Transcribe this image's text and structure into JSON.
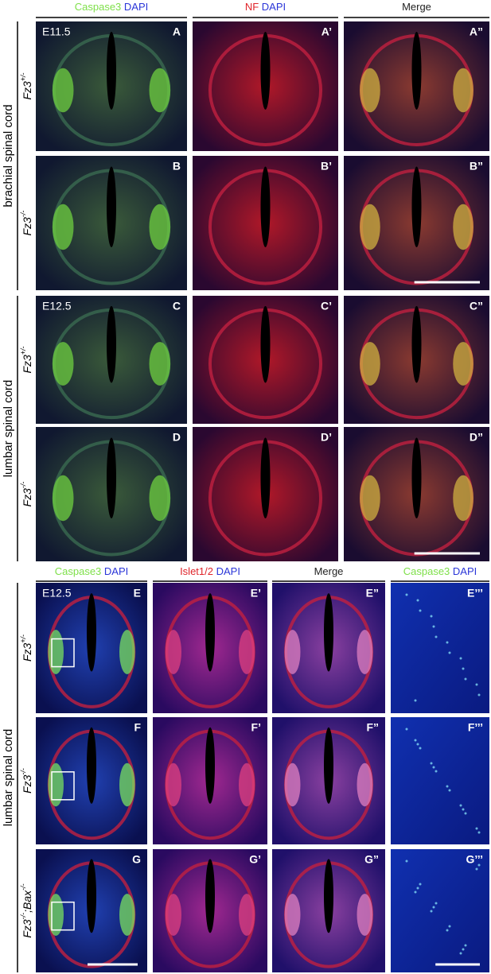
{
  "top": {
    "headers": [
      [
        {
          "text": "Caspase3",
          "color": "#7fe04a"
        },
        {
          "text": "DAPI",
          "color": "#2a35d8"
        }
      ],
      [
        {
          "text": "NF",
          "color": "#e0242a"
        },
        {
          "text": "DAPI",
          "color": "#2a35d8"
        }
      ],
      [
        {
          "text": "Merge",
          "color": "#222222"
        }
      ]
    ],
    "regions": [
      {
        "label": "brachial spinal cord",
        "rows": [
          0,
          1
        ]
      },
      {
        "label": "lumbar spinal cord",
        "rows": [
          2,
          3
        ]
      }
    ],
    "rows": [
      {
        "genotype": [
          {
            "text": "Fz3",
            "sup": "+/-"
          }
        ],
        "stage": "E11.5",
        "panels": [
          "A",
          "A’",
          "A”"
        ]
      },
      {
        "genotype": [
          {
            "text": "Fz3",
            "sup": "-/-"
          }
        ],
        "panels": [
          "B",
          "B’",
          "B”"
        ]
      },
      {
        "genotype": [
          {
            "text": "Fz3",
            "sup": "+/-"
          }
        ],
        "stage": "E12.5",
        "panels": [
          "C",
          "C’",
          "C”"
        ]
      },
      {
        "genotype": [
          {
            "text": "Fz3",
            "sup": "-/-"
          }
        ],
        "panels": [
          "D",
          "D’",
          "D”"
        ]
      }
    ]
  },
  "bottom": {
    "headers": [
      [
        {
          "text": "Caspase3",
          "color": "#7fe04a"
        },
        {
          "text": "DAPI",
          "color": "#2a35d8"
        }
      ],
      [
        {
          "text": "Islet1/2",
          "color": "#e0242a"
        },
        {
          "text": "DAPI",
          "color": "#2a35d8"
        }
      ],
      [
        {
          "text": "Merge",
          "color": "#222222"
        }
      ],
      [
        {
          "text": "Caspase3",
          "color": "#7fe04a"
        },
        {
          "text": "DAPI",
          "color": "#2a35d8"
        }
      ]
    ],
    "regions": [
      {
        "label": "lumbar spinal cord",
        "rows": [
          0,
          1,
          2
        ]
      }
    ],
    "rows": [
      {
        "genotype": [
          {
            "text": "Fz3",
            "sup": "+/-"
          }
        ],
        "stage": "E12.5",
        "panels": [
          "E",
          "E’",
          "E”",
          "E’’’"
        ]
      },
      {
        "genotype": [
          {
            "text": "Fz3",
            "sup": "-/-"
          }
        ],
        "panels": [
          "F",
          "F’",
          "F”",
          "F’’’"
        ]
      },
      {
        "genotype": [
          {
            "text": "Fz3",
            "sup": "-/-"
          },
          {
            "text": ";Bax",
            "sup": "-/-"
          }
        ],
        "panels": [
          "G",
          "G’",
          "G”",
          "G’’’"
        ]
      }
    ]
  }
}
